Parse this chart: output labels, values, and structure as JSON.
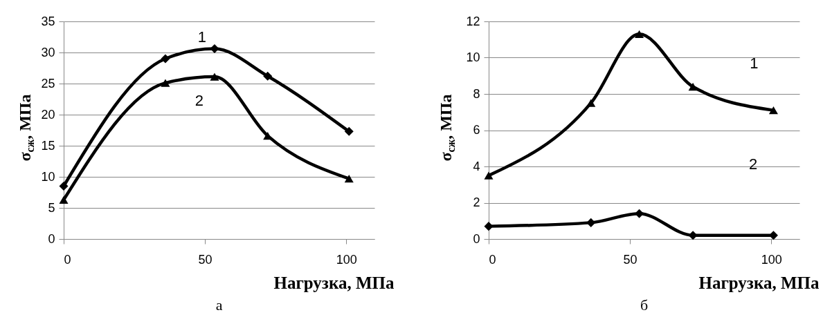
{
  "chart_data": [
    {
      "type": "line",
      "title": "а",
      "xlabel": "Нагрузка, МПа",
      "ylabel": "σ$_{сж}$, МПа",
      "x": [
        0,
        36,
        53.4,
        72.2,
        101
      ],
      "xlim": [
        0,
        110
      ],
      "xticks": [
        0,
        50,
        100
      ],
      "ylim": [
        0,
        35
      ],
      "yticks": [
        0,
        5,
        10,
        15,
        20,
        25,
        30,
        35
      ],
      "grid": "y",
      "series": [
        {
          "name": "1",
          "color": "#000000",
          "marker": "diamond",
          "values": [
            8.5,
            29.0,
            30.6,
            26.2,
            17.3
          ]
        },
        {
          "name": "2",
          "color": "#000000",
          "marker": "triangle",
          "values": [
            6.3,
            25.1,
            26.1,
            16.6,
            9.7
          ]
        }
      ]
    },
    {
      "type": "line",
      "title": "б",
      "xlabel": "Нагрузка, МПа",
      "ylabel": "σ$_{сж}$, МПа",
      "x": [
        0,
        36.2,
        53.3,
        72.3,
        100.8
      ],
      "xlim": [
        0,
        110
      ],
      "xticks": [
        0,
        50,
        100
      ],
      "ylim": [
        0,
        12
      ],
      "yticks": [
        0,
        2,
        4,
        6,
        8,
        10,
        12
      ],
      "grid": "y",
      "series": [
        {
          "name": "1",
          "color": "#000000",
          "marker": "triangle",
          "values": [
            3.5,
            7.5,
            11.3,
            8.4,
            7.1
          ]
        },
        {
          "color": "#000000",
          "marker": "diamond",
          "values": [
            0.7,
            0.9,
            1.4,
            0.2,
            0.2
          ]
        }
      ],
      "annotations": [
        "2"
      ]
    }
  ]
}
